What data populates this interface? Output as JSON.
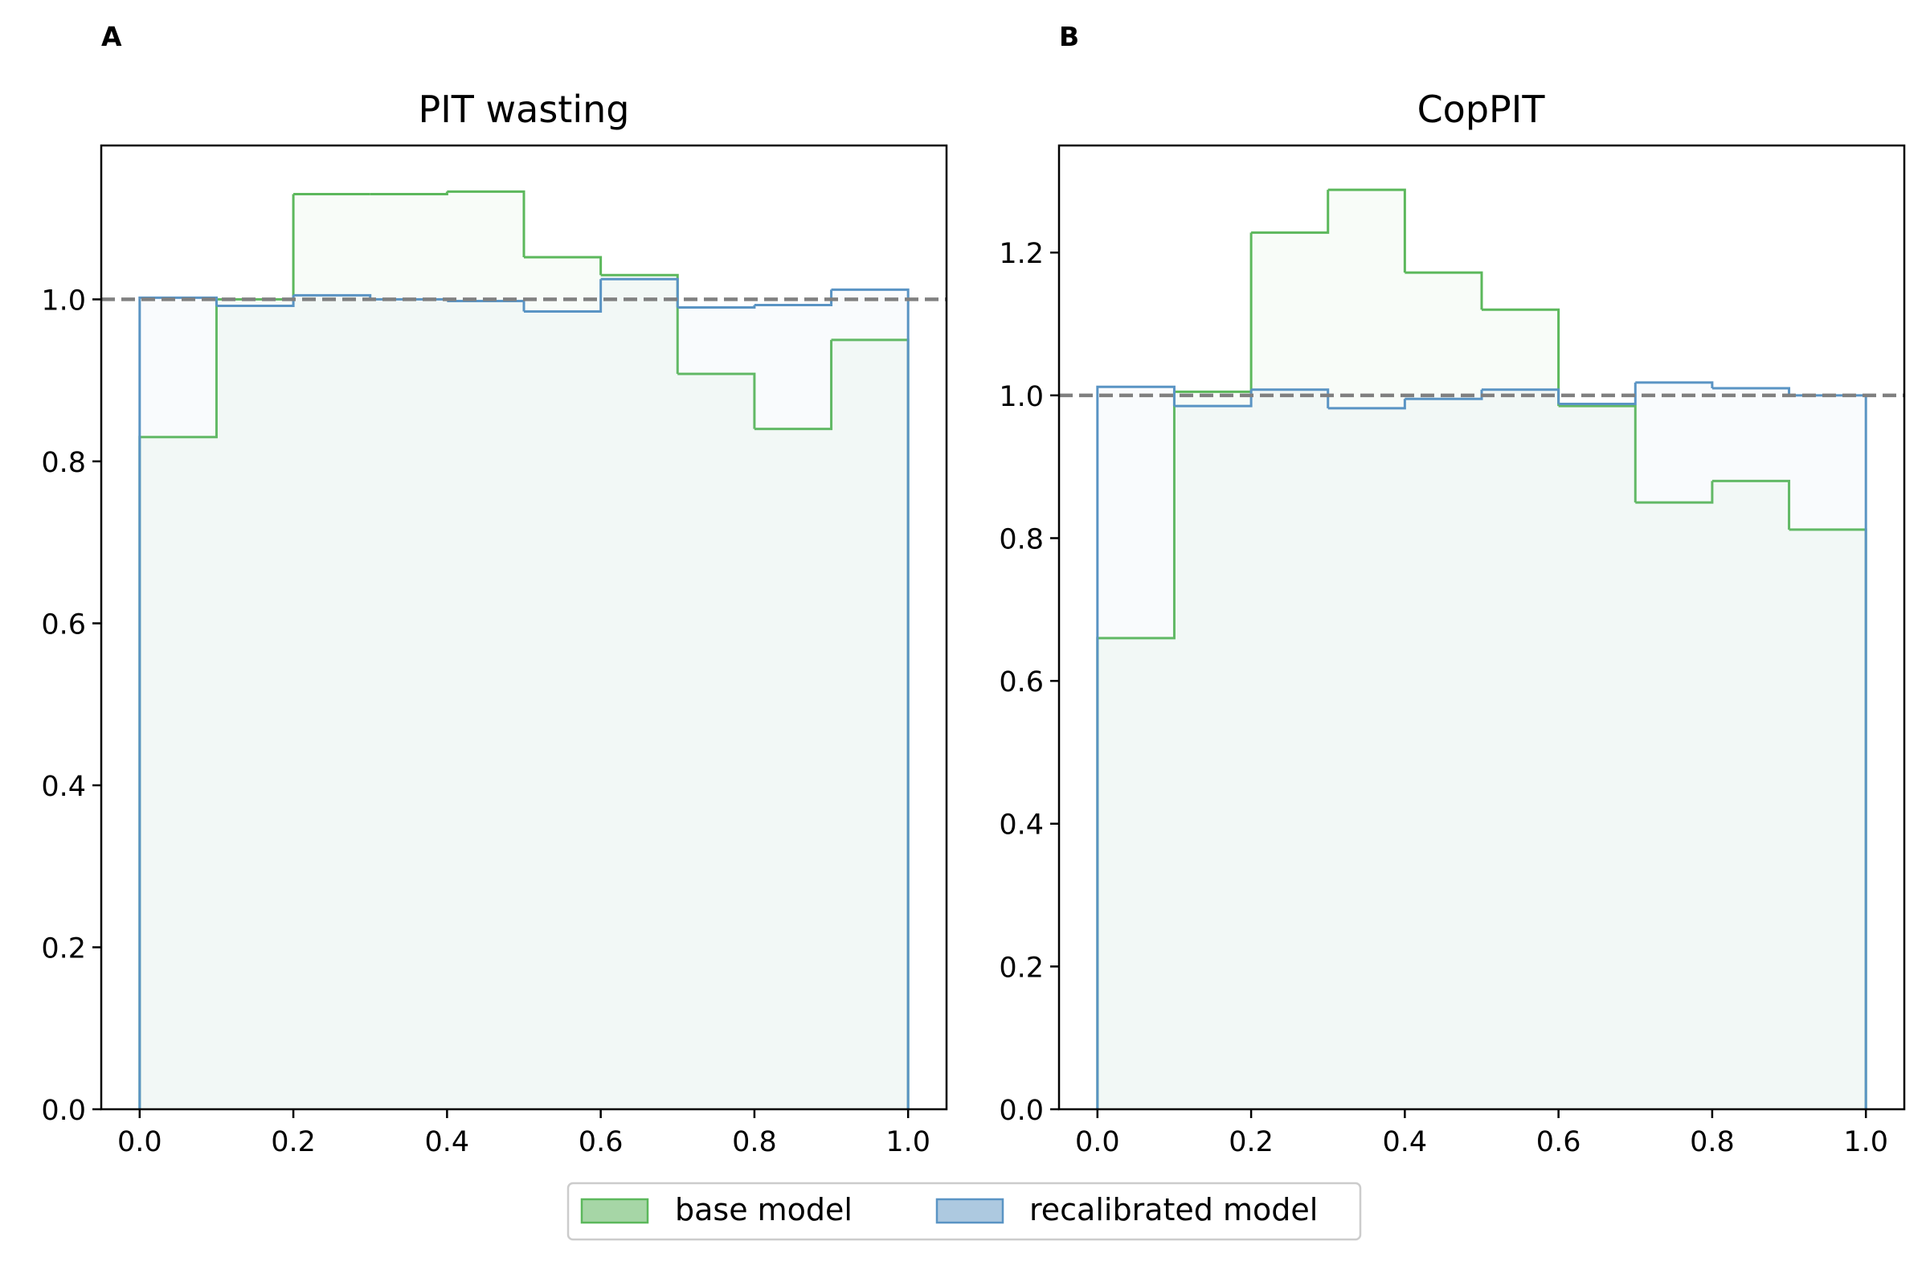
{
  "colors": {
    "base": "#5cb85c",
    "base_fill": "#a6d6a6",
    "recal": "#5a94c4",
    "recal_fill": "#adc9e0",
    "ref_line": "#808080",
    "axes": "#000000"
  },
  "chart_data": [
    {
      "type": "histogram-step",
      "panel_label": "A",
      "title": "PIT wasting",
      "xlabel": "",
      "ylabel": "",
      "xlim": [
        -0.05,
        1.05
      ],
      "ylim": [
        0,
        1.19
      ],
      "xticks": [
        0.0,
        0.2,
        0.4,
        0.6,
        0.8,
        1.0
      ],
      "yticks": [
        0.0,
        0.2,
        0.4,
        0.6,
        0.8,
        1.0
      ],
      "xtick_labels": [
        "0.0",
        "0.2",
        "0.4",
        "0.6",
        "0.8",
        "1.0"
      ],
      "ytick_labels": [
        "0.0",
        "0.2",
        "0.4",
        "0.6",
        "0.8",
        "1.0"
      ],
      "bin_edges": [
        0.0,
        0.1,
        0.2,
        0.3,
        0.4,
        0.5,
        0.6,
        0.7,
        0.8,
        0.9,
        1.0
      ],
      "reference_line": 1.0,
      "series": [
        {
          "name": "base model",
          "values": [
            0.83,
            1.0,
            1.13,
            1.13,
            1.133,
            1.052,
            1.03,
            0.908,
            0.84,
            0.95
          ]
        },
        {
          "name": "recalibrated model",
          "values": [
            1.002,
            0.992,
            1.005,
            1.0,
            0.998,
            0.985,
            1.025,
            0.99,
            0.993,
            1.012
          ]
        }
      ]
    },
    {
      "type": "histogram-step",
      "panel_label": "B",
      "title": "CopPIT",
      "xlabel": "",
      "ylabel": "",
      "xlim": [
        -0.05,
        1.05
      ],
      "ylim": [
        0,
        1.35
      ],
      "xticks": [
        0.0,
        0.2,
        0.4,
        0.6,
        0.8,
        1.0
      ],
      "yticks": [
        0.0,
        0.2,
        0.4,
        0.6,
        0.8,
        1.0,
        1.2
      ],
      "xtick_labels": [
        "0.0",
        "0.2",
        "0.4",
        "0.6",
        "0.8",
        "1.0"
      ],
      "ytick_labels": [
        "0.0",
        "0.2",
        "0.4",
        "0.6",
        "0.8",
        "1.0",
        "1.2"
      ],
      "bin_edges": [
        0.0,
        0.1,
        0.2,
        0.3,
        0.4,
        0.5,
        0.6,
        0.7,
        0.8,
        0.9,
        1.0
      ],
      "reference_line": 1.0,
      "series": [
        {
          "name": "base model",
          "values": [
            0.66,
            1.005,
            1.228,
            1.288,
            1.172,
            1.12,
            0.985,
            0.85,
            0.88,
            0.812
          ]
        },
        {
          "name": "recalibrated model",
          "values": [
            1.012,
            0.985,
            1.008,
            0.982,
            0.995,
            1.008,
            0.988,
            1.018,
            1.01,
            1.0
          ]
        }
      ]
    }
  ],
  "legend": {
    "position": "bottom-center",
    "entries": [
      "base model",
      "recalibrated model"
    ]
  }
}
